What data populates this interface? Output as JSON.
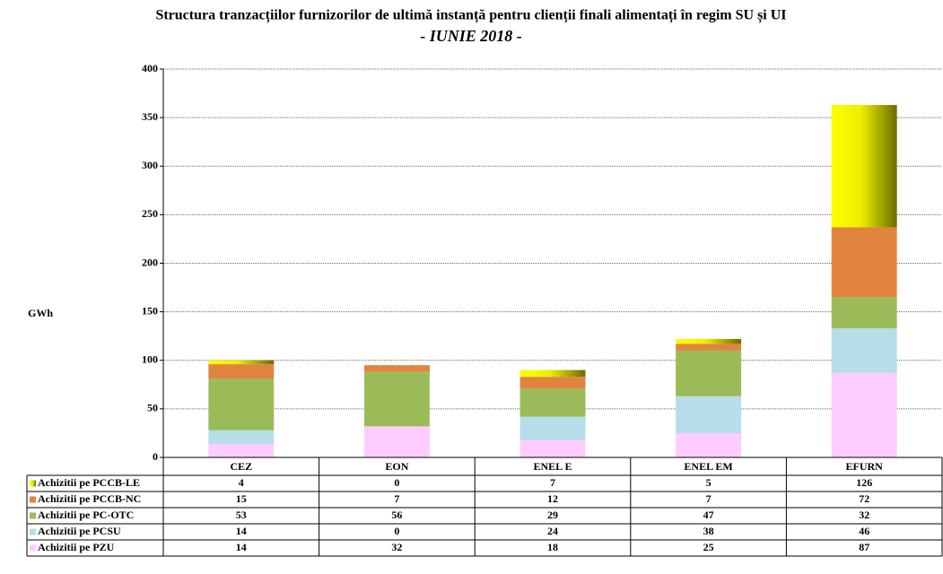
{
  "chart_data": {
    "type": "bar",
    "stacked": true,
    "title": "Structura tranzacțiilor furnizorilor de ultimă instanță pentru clienții finali alimentați în regim SU și UI",
    "subtitle": "- IUNIE 2018 -",
    "y_label": "GWh",
    "categories": [
      "CEZ",
      "EON",
      "ENEL E",
      "ENEL EM",
      "EFURN"
    ],
    "series": [
      {
        "name": "Achizitii pe PZU",
        "color": "#ffccff",
        "values": [
          14,
          32,
          18,
          25,
          87
        ]
      },
      {
        "name": "Achizitii pe PCSU",
        "color": "#b7dde8",
        "values": [
          14,
          0,
          24,
          38,
          46
        ]
      },
      {
        "name": "Achizitii pe PC-OTC",
        "color": "#9bbb59",
        "values": [
          53,
          56,
          29,
          47,
          32
        ]
      },
      {
        "name": "Achizitii pe PCCB-NC",
        "color": "#e0843e",
        "values": [
          15,
          7,
          12,
          7,
          72
        ]
      },
      {
        "name": "Achizitii pe PCCB-LE",
        "color": "#ffff00",
        "values": [
          4,
          0,
          7,
          5,
          126
        ]
      }
    ],
    "ylim": [
      0,
      400
    ],
    "yticks": [
      0,
      50,
      100,
      150,
      200,
      250,
      300,
      350,
      400
    ],
    "grid": true
  }
}
